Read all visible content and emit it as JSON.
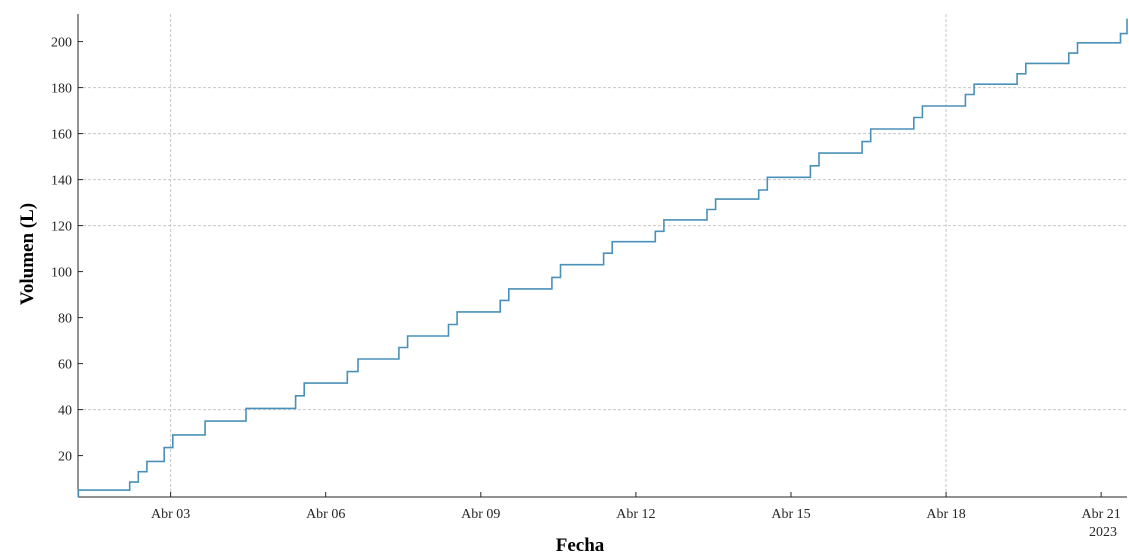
{
  "colors": {
    "line": "#4a90b8",
    "grid": "#c8c8c8",
    "axis": "#262626",
    "background": "#ffffff"
  },
  "chart_data": {
    "type": "line",
    "style": "step",
    "title": "",
    "xlabel": "Fecha",
    "ylabel": "Volumen (L)",
    "year_label": "2023",
    "x_unit": "days from Abr 01 2023",
    "xlim": [
      "2023-04-01 05:00",
      "2023-04-21 12:00"
    ],
    "ylim": [
      2,
      212
    ],
    "x_ticks": [
      {
        "date": "2023-04-03",
        "label": "Abr 03"
      },
      {
        "date": "2023-04-06",
        "label": "Abr 06"
      },
      {
        "date": "2023-04-09",
        "label": "Abr 09"
      },
      {
        "date": "2023-04-12",
        "label": "Abr 12"
      },
      {
        "date": "2023-04-15",
        "label": "Abr 15"
      },
      {
        "date": "2023-04-18",
        "label": "Abr 18"
      },
      {
        "date": "2023-04-21",
        "label": "Abr 21"
      }
    ],
    "y_ticks": [
      20,
      40,
      60,
      80,
      100,
      120,
      140,
      160,
      180,
      200
    ],
    "grid_x_dates": [
      "2023-04-03",
      "2023-04-18"
    ],
    "grid_y": [
      40,
      120,
      140,
      160,
      180
    ],
    "legend": "none",
    "series": [
      {
        "x": [
          "2023-04-01 05:00",
          "2023-04-01 05:10",
          "2023-04-02 05:00",
          "2023-04-02 09:00",
          "2023-04-02 13:00",
          "2023-04-02 15:00",
          "2023-04-02 21:00",
          "2023-04-03 01:00",
          "2023-04-03 13:00",
          "2023-04-03 16:00",
          "2023-04-04 11:00",
          "2023-04-04 15:00",
          "2023-04-05 10:00",
          "2023-04-05 14:00",
          "2023-04-06 01:00",
          "2023-04-06 10:00",
          "2023-04-06 15:00",
          "2023-04-07 10:00",
          "2023-04-07 14:00",
          "2023-04-08 09:00",
          "2023-04-08 13:00",
          "2023-04-09 09:00",
          "2023-04-09 13:00",
          "2023-04-10 09:00",
          "2023-04-10 13:00",
          "2023-04-11 09:00",
          "2023-04-11 13:00",
          "2023-04-12 09:00",
          "2023-04-12 13:00",
          "2023-04-13 09:00",
          "2023-04-13 13:00",
          "2023-04-14 09:00",
          "2023-04-14 13:00",
          "2023-04-15 09:00",
          "2023-04-15 13:00",
          "2023-04-16 09:00",
          "2023-04-16 13:00",
          "2023-04-17 09:00",
          "2023-04-17 13:00",
          "2023-04-18 09:00",
          "2023-04-18 13:00",
          "2023-04-19 09:00",
          "2023-04-19 13:00",
          "2023-04-20 09:00",
          "2023-04-20 13:00",
          "2023-04-21 09:00",
          "2023-04-21 12:00"
        ],
        "y": [
          2,
          5,
          8.5,
          13,
          17.5,
          17.5,
          23.5,
          29,
          29,
          35,
          40.5,
          40.5,
          46,
          51.5,
          51.5,
          56.5,
          62,
          67,
          72,
          77,
          82.5,
          87.5,
          92.5,
          97.5,
          103,
          108,
          113,
          117.5,
          122.5,
          127,
          131.5,
          135.5,
          141,
          146,
          151.5,
          156.5,
          162,
          167,
          172,
          177,
          181.5,
          186,
          190.5,
          195,
          199.5,
          203.5,
          207
        ],
        "final_rise": 210
      }
    ]
  }
}
